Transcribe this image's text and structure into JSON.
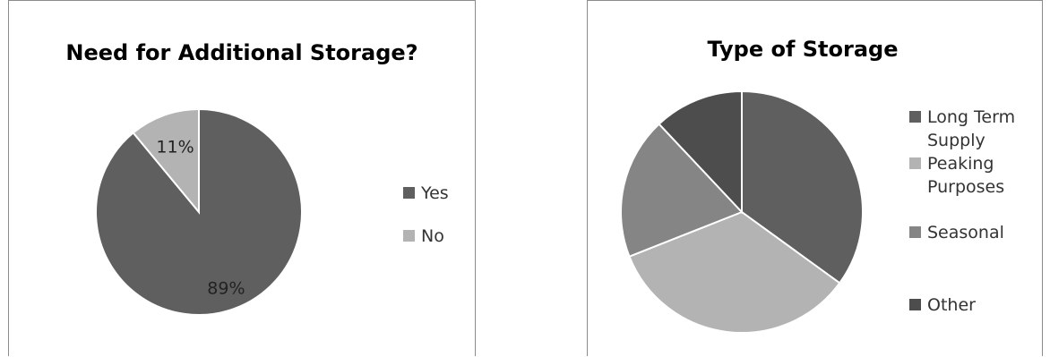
{
  "chart_data": [
    {
      "type": "pie",
      "title": "Need for Additional Storage?",
      "categories": [
        "Yes",
        "No"
      ],
      "values": [
        89,
        11
      ],
      "data_labels": [
        "89%",
        "11%"
      ],
      "colors": [
        "#5f5f5f",
        "#b3b3b3"
      ],
      "legend_position": "right",
      "start_angle": "12 o'clock",
      "direction": "clockwise"
    },
    {
      "type": "pie",
      "title": "Type of Storage",
      "categories": [
        "Long Term Supply",
        "Peaking Purposes",
        "Seasonal",
        "Other"
      ],
      "legend_lines": [
        [
          "Long Term",
          "Supply"
        ],
        [
          "Peaking",
          "Purposes"
        ],
        [
          "Seasonal"
        ],
        [
          "Other"
        ]
      ],
      "values": [
        35,
        34,
        19,
        12
      ],
      "colors": [
        "#5f5f5f",
        "#b3b3b3",
        "#858585",
        "#4d4d4d"
      ],
      "legend_position": "right",
      "start_angle": "12 o'clock",
      "direction": "clockwise"
    }
  ]
}
